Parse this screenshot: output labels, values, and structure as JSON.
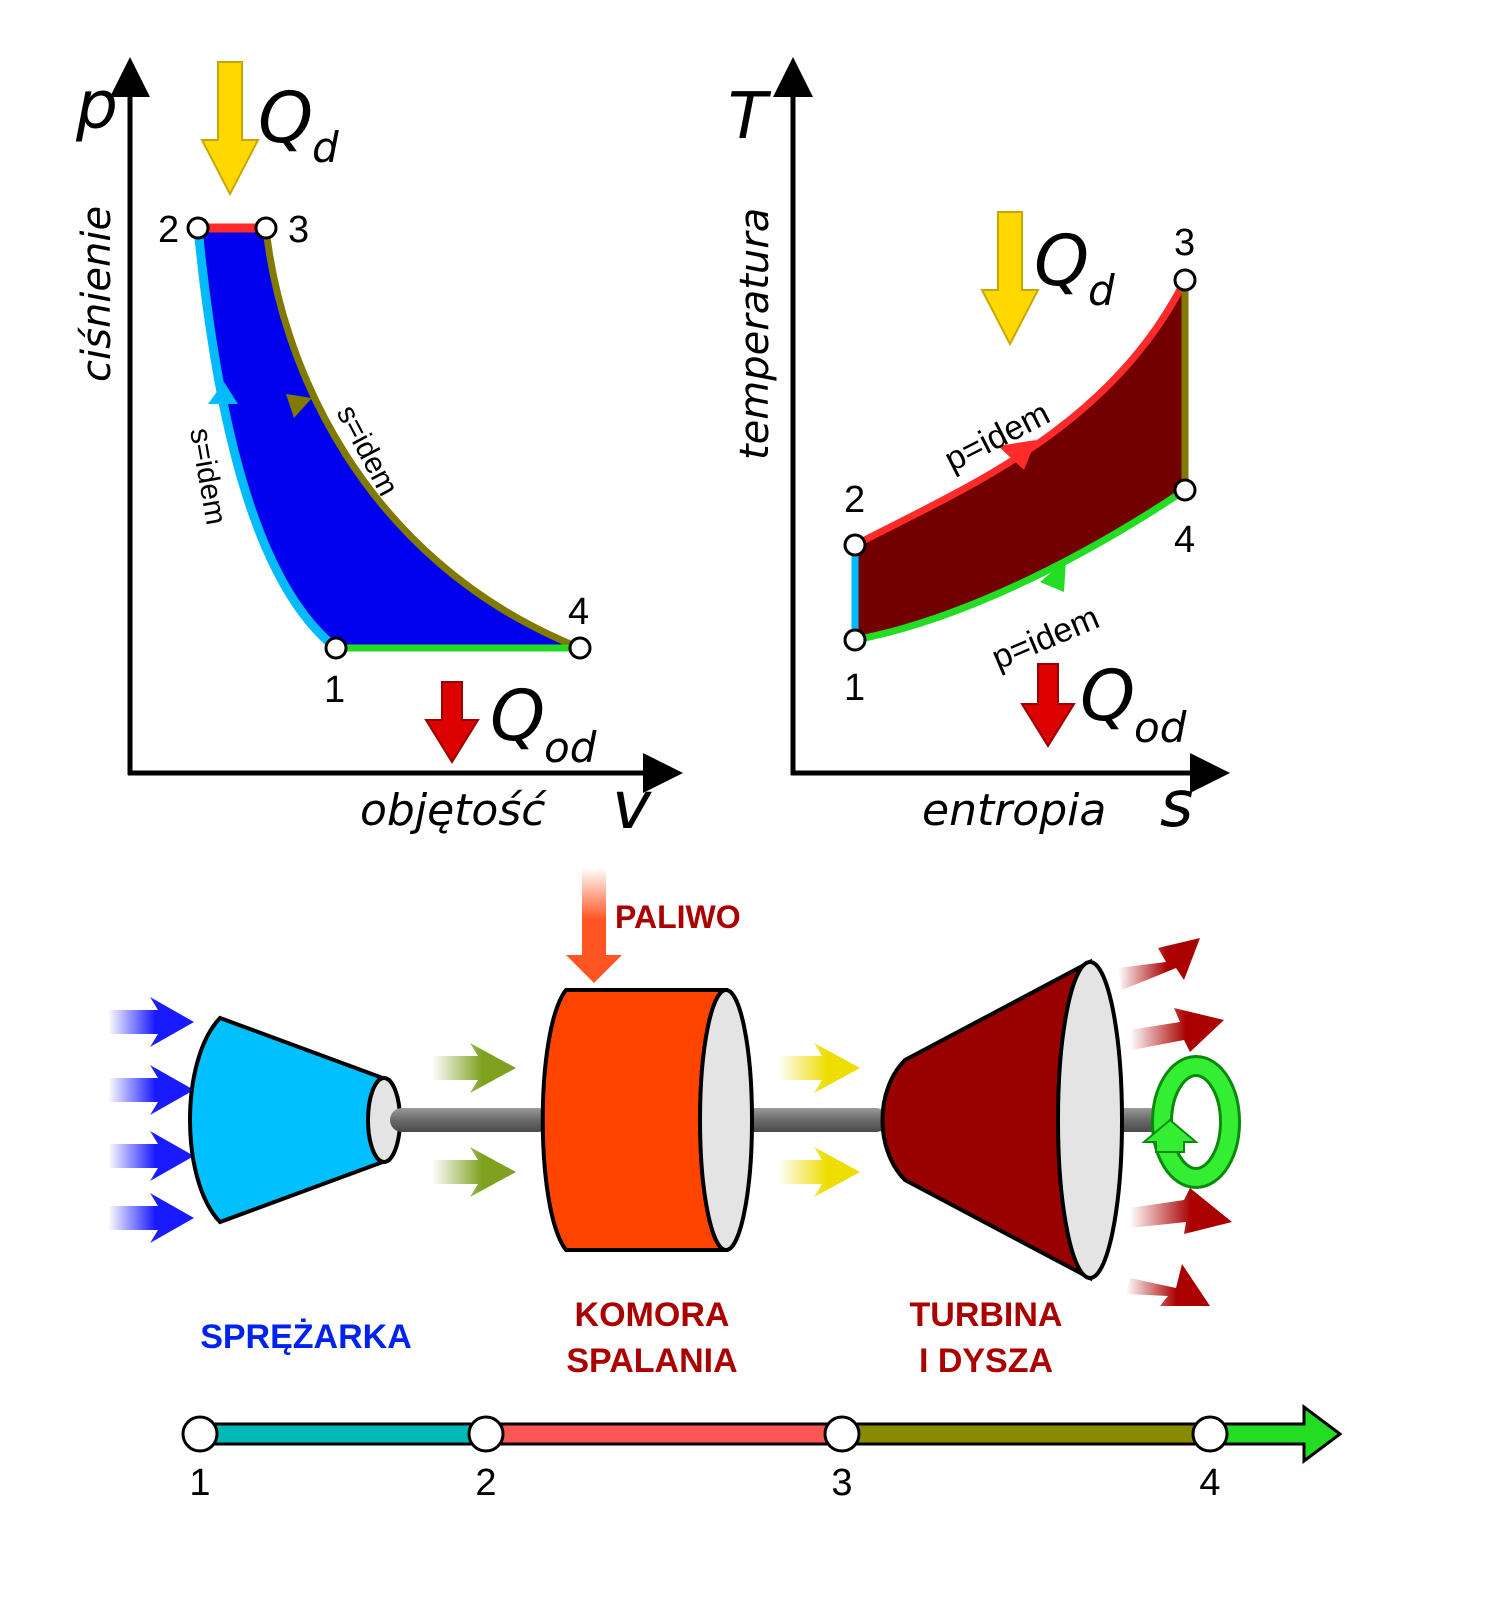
{
  "colors": {
    "pv_fill": "#0000ee",
    "ts_fill": "#730000",
    "compression": "#00bbff",
    "heat_add": "#ff2a2a",
    "expansion": "#807a00",
    "heat_reject": "#22dd22",
    "qd_arrow": "#ffd800",
    "qod_arrow": "#dd0000",
    "compressor": "#00c0ff",
    "chamber": "#ff4400",
    "turbine": "#990000",
    "compressor_text": "#0022ee",
    "chamber_text": "#aa0000"
  },
  "pv": {
    "axis_y_symbol": "p",
    "axis_y_label": "ciśnienie",
    "axis_x_symbol": "v",
    "axis_x_label": "objętość",
    "q_in_main": "Q",
    "q_in_sub": "d",
    "q_out_main": "Q",
    "q_out_sub": "od",
    "points": [
      "1",
      "2",
      "3",
      "4"
    ],
    "left_curve_label": "s=idem",
    "right_curve_label": "s=idem"
  },
  "ts": {
    "axis_y_symbol": "T",
    "axis_y_label": "temperatura",
    "axis_x_symbol": "s",
    "axis_x_label": "entropia",
    "q_in_main": "Q",
    "q_in_sub": "d",
    "q_out_main": "Q",
    "q_out_sub": "od",
    "points": [
      "1",
      "2",
      "3",
      "4"
    ],
    "upper_curve_label": "p=idem",
    "lower_curve_label": "p=idem"
  },
  "engine": {
    "fuel_label": "PALIWO",
    "compressor_label": "SPRĘŻARKA",
    "chamber_label_line1": "KOMORA",
    "chamber_label_line2": "SPALANIA",
    "turbine_label_line1": "TURBINA",
    "turbine_label_line2": "I DYSZA"
  },
  "timeline": {
    "points": [
      "1",
      "2",
      "3",
      "4"
    ]
  }
}
